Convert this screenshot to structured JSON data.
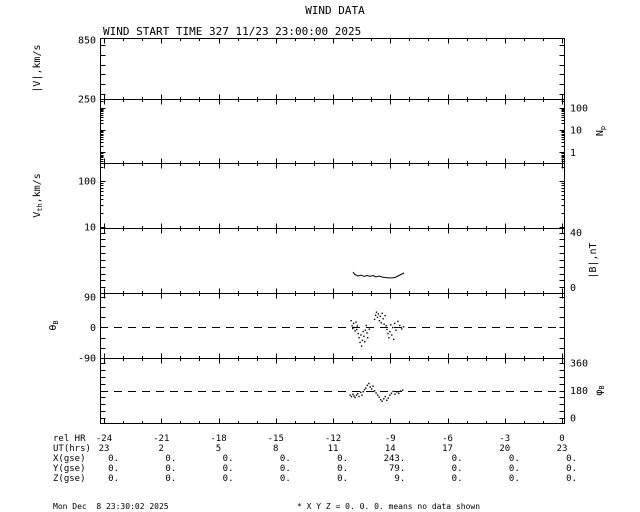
{
  "footer": {
    "generated": "Mon Dec  8 23:30:02 2025",
    "note": "* X Y Z = 0. 0. 0. means no data shown"
  },
  "colors": {
    "foreground": "#000000",
    "background": "#ffffff"
  },
  "chart_data": {
    "type": "line",
    "title": "WIND DATA",
    "subtitle": "WIND START TIME 327 11/23 23:00:00 2025",
    "x_axis": {
      "units": "rel HR",
      "range_rel_hr": [
        -24.2,
        0.1
      ],
      "major_tick_step_hr": 3,
      "minor_tick_step_hr": 1,
      "rows": [
        {
          "label": "rel HR",
          "values": [
            "-24",
            "-21",
            "-18",
            "-15",
            "-12",
            "-9",
            "-6",
            "-3",
            "0"
          ]
        },
        {
          "label": "UT(hrs)",
          "values": [
            "23",
            "2",
            "5",
            "8",
            "11",
            "14",
            "17",
            "20",
            "23"
          ]
        },
        {
          "label": "X(gse)",
          "values": [
            "0.",
            "0.",
            "0.",
            "0.",
            "0.",
            "243.",
            "0.",
            "0.",
            "0."
          ]
        },
        {
          "label": "Y(gse)",
          "values": [
            "0.",
            "0.",
            "0.",
            "0.",
            "0.",
            "79.",
            "0.",
            "0.",
            "0."
          ]
        },
        {
          "label": "Z(gse)",
          "values": [
            "0.",
            "0.",
            "0.",
            "0.",
            "0.",
            "9.",
            "0.",
            "0.",
            "0."
          ]
        }
      ]
    },
    "panels": [
      {
        "id": "speed",
        "ylabel": {
          "pre": "|V|,km/s",
          "sub": "",
          "post": ""
        },
        "label_side": "left",
        "scale": "linear",
        "yrange": [
          250,
          870
        ],
        "tick_step": 100,
        "ticks": [
          {
            "v": 850,
            "label": "850"
          },
          {
            "v": 250,
            "label": "250"
          }
        ],
        "dashed_at": null,
        "series_points": [],
        "scatter_points": []
      },
      {
        "id": "proton-density",
        "ylabel": {
          "pre": "N",
          "sub": "p",
          "post": ""
        },
        "label_side": "right",
        "scale": "log",
        "yrange": [
          0.335,
          251
        ],
        "ticks": [
          {
            "v": 100,
            "label": "100"
          },
          {
            "v": 10,
            "label": "10"
          },
          {
            "v": 1,
            "label": "1"
          }
        ],
        "dashed_at": null,
        "series_points": [],
        "scatter_points": []
      },
      {
        "id": "thermal-speed",
        "ylabel": {
          "pre": "V",
          "sub": "th",
          "post": ",km/s"
        },
        "label_side": "left",
        "scale": "log",
        "yrange": [
          9.5,
          246
        ],
        "ticks": [
          {
            "v": 100,
            "label": "100"
          },
          {
            "v": 10,
            "label": "10"
          }
        ],
        "dashed_at": null,
        "series_points": [],
        "scatter_points": []
      },
      {
        "id": "b-magnitude",
        "ylabel": {
          "pre": "|B|,nT",
          "sub": "",
          "post": ""
        },
        "label_side": "right",
        "scale": "linear",
        "yrange": [
          -4.2,
          43.3
        ],
        "tick_step": 5,
        "ticks": [
          {
            "v": 40,
            "label": "40"
          },
          {
            "v": 0,
            "label": "0"
          }
        ],
        "dashed_at": null,
        "series_points": [
          [
            -10.95,
            11.1
          ],
          [
            -10.85,
            9.3
          ],
          [
            -10.69,
            8.2
          ],
          [
            -10.53,
            8.9
          ],
          [
            -10.37,
            7.9
          ],
          [
            -10.22,
            8.6
          ],
          [
            -10.06,
            7.9
          ],
          [
            -9.9,
            8.6
          ],
          [
            -9.75,
            7.5
          ],
          [
            -9.59,
            8.2
          ],
          [
            -9.43,
            7.5
          ],
          [
            -9.28,
            7.1
          ],
          [
            -9.07,
            6.8
          ],
          [
            -8.86,
            6.8
          ],
          [
            -8.7,
            7.5
          ],
          [
            -8.54,
            8.6
          ],
          [
            -8.39,
            9.7
          ],
          [
            -8.28,
            10.4
          ]
        ],
        "scatter_points": []
      },
      {
        "id": "theta-b",
        "ylabel": {
          "pre": "θ",
          "sub": "B",
          "post": ""
        },
        "label_side": "left",
        "scale": "linear",
        "yrange": [
          -90,
          101.8
        ],
        "tick_step": 30,
        "ticks": [
          {
            "v": 90,
            "label": "90"
          },
          {
            "v": 0,
            "label": "0"
          },
          {
            "v": -90,
            "label": "-90"
          }
        ],
        "dashed_at": 0,
        "series_points": [],
        "scatter_points": [
          [
            -11.05,
            20
          ],
          [
            -11.0,
            5
          ],
          [
            -10.97,
            -3
          ],
          [
            -10.92,
            12
          ],
          [
            -10.88,
            0
          ],
          [
            -10.84,
            -10
          ],
          [
            -10.8,
            16
          ],
          [
            -10.76,
            -6
          ],
          [
            -10.72,
            4
          ],
          [
            -10.68,
            -18
          ],
          [
            -10.63,
            -30
          ],
          [
            -10.58,
            -44
          ],
          [
            -10.54,
            -22
          ],
          [
            -10.5,
            -55
          ],
          [
            -10.46,
            -38
          ],
          [
            -10.42,
            -12
          ],
          [
            -10.38,
            -26
          ],
          [
            -10.34,
            -42
          ],
          [
            -10.3,
            -8
          ],
          [
            -10.26,
            6
          ],
          [
            -10.22,
            -16
          ],
          [
            -10.18,
            -30
          ],
          [
            -10.1,
            -5
          ],
          [
            -9.82,
            24
          ],
          [
            -9.77,
            36
          ],
          [
            -9.72,
            45
          ],
          [
            -9.67,
            30
          ],
          [
            -9.62,
            40
          ],
          [
            -9.57,
            20
          ],
          [
            -9.52,
            33
          ],
          [
            -9.47,
            14
          ],
          [
            -9.42,
            42
          ],
          [
            -9.37,
            26
          ],
          [
            -9.32,
            10
          ],
          [
            -9.27,
            35
          ],
          [
            -9.22,
            5
          ],
          [
            -9.17,
            -6
          ],
          [
            -9.12,
            -18
          ],
          [
            -9.07,
            -30
          ],
          [
            -9.02,
            -12
          ],
          [
            -8.97,
            8
          ],
          [
            -8.92,
            -22
          ],
          [
            -8.87,
            0
          ],
          [
            -8.82,
            -35
          ],
          [
            -8.77,
            12
          ],
          [
            -8.7,
            -8
          ],
          [
            -8.6,
            18
          ],
          [
            -8.5,
            6
          ],
          [
            -8.4,
            -4
          ],
          [
            -8.3,
            2
          ]
        ]
      },
      {
        "id": "phi-b",
        "ylabel": {
          "pre": "φ",
          "sub": "B",
          "post": ""
        },
        "label_side": "right",
        "scale": "linear",
        "yrange": [
          -32.7,
          392.7
        ],
        "tick_step": 45,
        "ticks": [
          {
            "v": 360,
            "label": "360"
          },
          {
            "v": 180,
            "label": "180"
          },
          {
            "v": 0,
            "label": "0"
          }
        ],
        "dashed_at": 180,
        "series_points": [],
        "scatter_points": [
          [
            -11.1,
            150
          ],
          [
            -11.03,
            140
          ],
          [
            -10.96,
            155
          ],
          [
            -10.9,
            144
          ],
          [
            -10.84,
            134
          ],
          [
            -10.77,
            150
          ],
          [
            -10.7,
            160
          ],
          [
            -10.64,
            141
          ],
          [
            -10.55,
            168
          ],
          [
            -10.48,
            150
          ],
          [
            -10.42,
            172
          ],
          [
            -10.35,
            185
          ],
          [
            -10.28,
            196
          ],
          [
            -10.2,
            214
          ],
          [
            -10.12,
            226
          ],
          [
            -10.05,
            202
          ],
          [
            -9.98,
            190
          ],
          [
            -9.9,
            208
          ],
          [
            -9.82,
            178
          ],
          [
            -9.74,
            164
          ],
          [
            -9.66,
            150
          ],
          [
            -9.58,
            136
          ],
          [
            -9.5,
            120
          ],
          [
            -9.42,
            110
          ],
          [
            -9.34,
            126
          ],
          [
            -9.26,
            140
          ],
          [
            -9.18,
            116
          ],
          [
            -9.1,
            130
          ],
          [
            -9.02,
            150
          ],
          [
            -8.94,
            162
          ],
          [
            -8.85,
            174
          ],
          [
            -8.75,
            156
          ],
          [
            -8.65,
            170
          ],
          [
            -8.55,
            162
          ],
          [
            -8.45,
            176
          ],
          [
            -8.35,
            182
          ]
        ]
      }
    ]
  }
}
